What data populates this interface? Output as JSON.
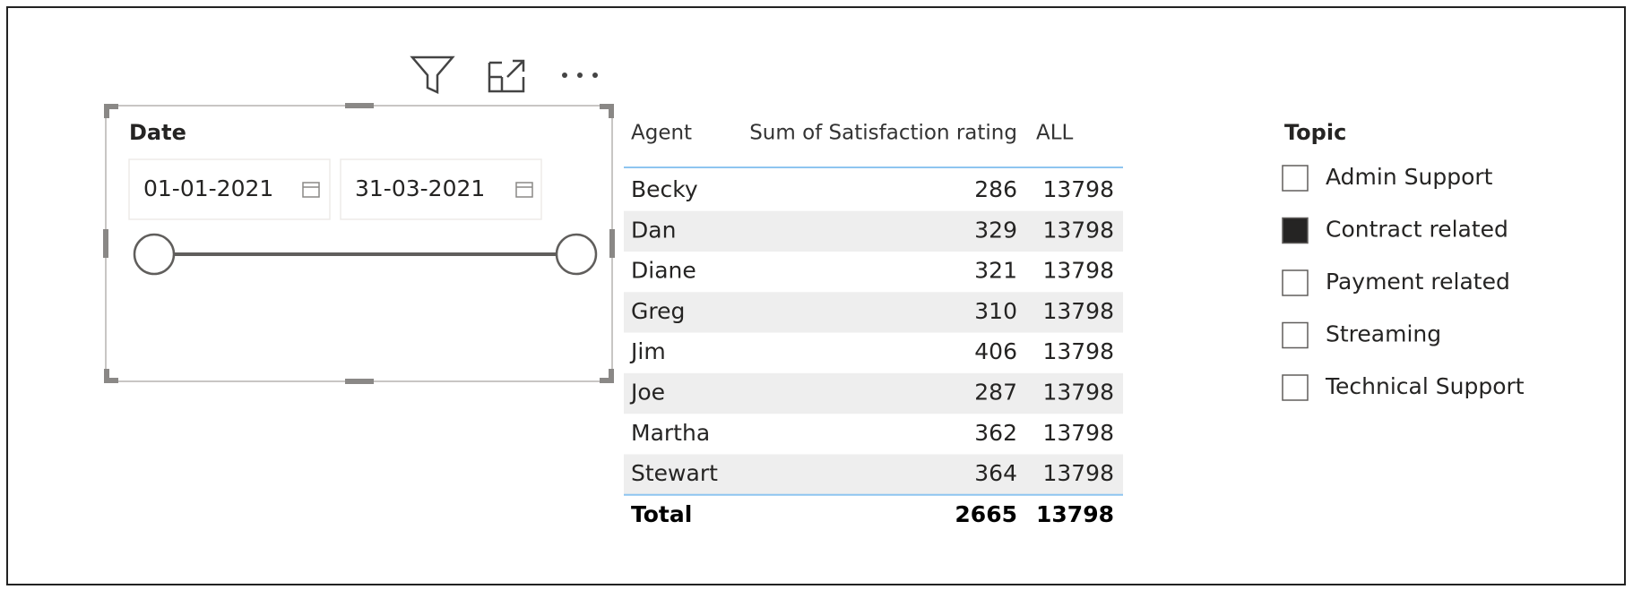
{
  "date_slicer": {
    "title": "Date",
    "start": "01-01-2021",
    "end": "31-03-2021"
  },
  "table": {
    "headers": [
      "Agent",
      "Sum of Satisfaction rating",
      "ALL"
    ],
    "rows": [
      [
        "Becky",
        286,
        13798
      ],
      [
        "Dan",
        329,
        13798
      ],
      [
        "Diane",
        321,
        13798
      ],
      [
        "Greg",
        310,
        13798
      ],
      [
        "Jim",
        406,
        13798
      ],
      [
        "Joe",
        287,
        13798
      ],
      [
        "Martha",
        362,
        13798
      ],
      [
        "Stewart",
        364,
        13798
      ]
    ],
    "total": [
      "Total",
      2665,
      13798
    ]
  },
  "topic_slicer": {
    "title": "Topic",
    "items": [
      {
        "label": "Admin Support",
        "checked": false
      },
      {
        "label": "Contract related",
        "checked": true
      },
      {
        "label": "Payment related",
        "checked": false
      },
      {
        "label": "Streaming",
        "checked": false
      },
      {
        "label": "Technical Support",
        "checked": false
      }
    ]
  }
}
